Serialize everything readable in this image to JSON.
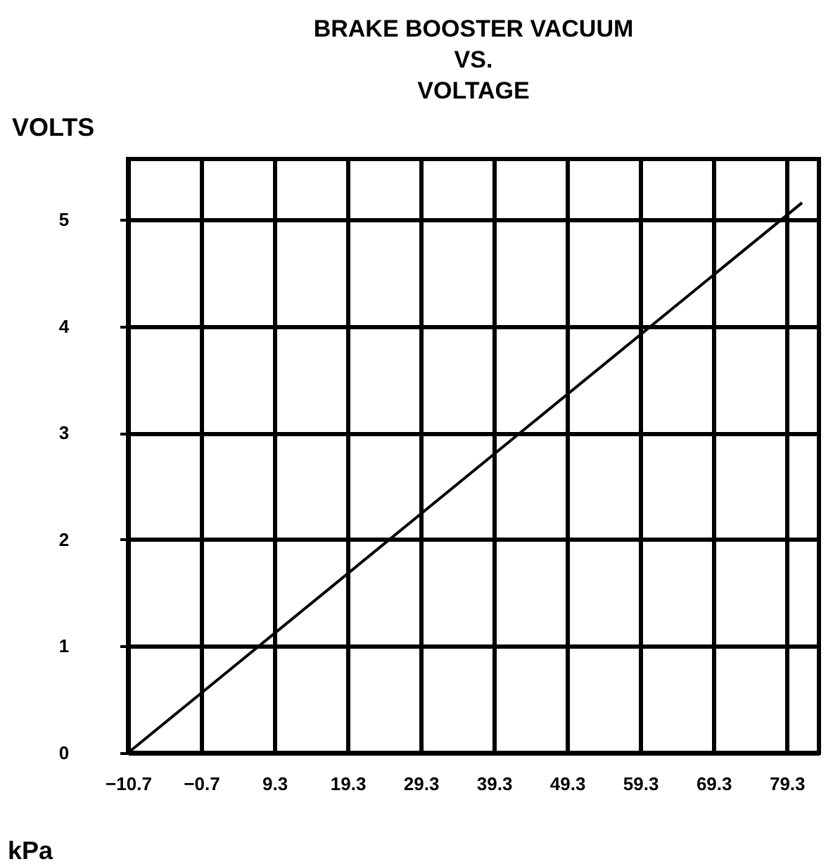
{
  "chart_data": {
    "type": "line",
    "title": "BRAKE BOOSTER VACUUM\nVS.\nVOLTAGE",
    "xlabel": "kPa",
    "ylabel": "VOLTS",
    "x": [
      -10.7,
      81.4
    ],
    "series": [
      {
        "color": "#000000",
        "values": [
          0,
          5.16
        ]
      }
    ],
    "xlim": [
      -10.7,
      83.7
    ],
    "xticks": [
      -10.7,
      -0.7,
      9.3,
      19.3,
      29.3,
      39.3,
      49.3,
      59.3,
      69.3,
      79.3
    ],
    "ylim": [
      0,
      5.57
    ],
    "yticks": [
      0,
      1,
      2,
      3,
      4,
      5
    ],
    "grid": true,
    "line_style": "solid",
    "legend": false
  }
}
